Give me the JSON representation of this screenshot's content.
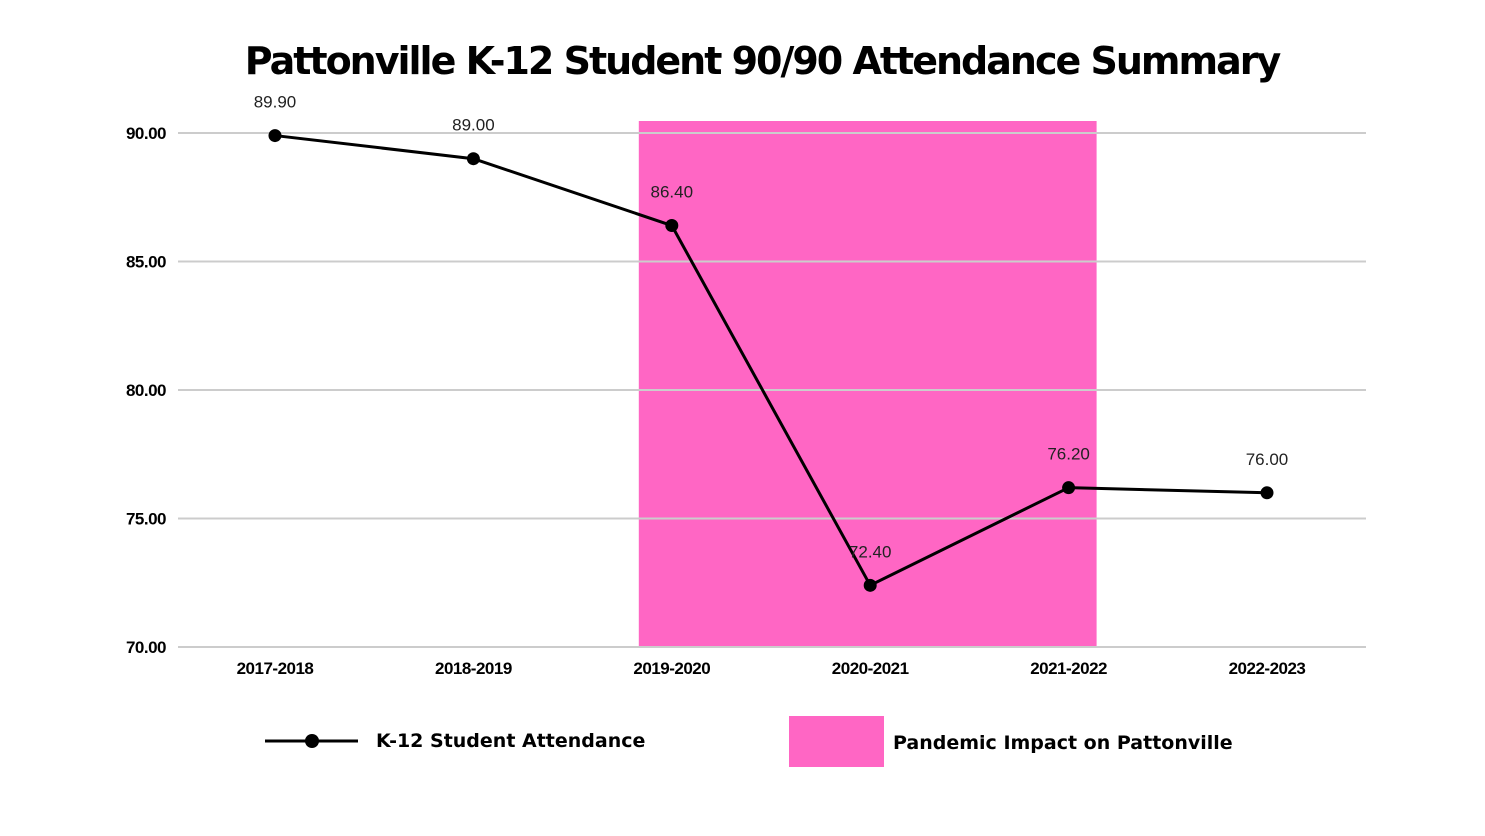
{
  "chart_data": {
    "type": "line",
    "title": "Pattonville K-12 Student 90/90 Attendance Summary",
    "categories": [
      "2017-2018",
      "2018-2019",
      "2019-2020",
      "2020-2021",
      "2021-2022",
      "2022-2023"
    ],
    "series": [
      {
        "name": "K-12 Student Attendance",
        "values": [
          89.9,
          89.0,
          86.4,
          72.4,
          76.2,
          76.0
        ],
        "labels": [
          "89.90",
          "89.00",
          "86.40",
          "72.40",
          "76.20",
          "76.00"
        ],
        "color": "#000000"
      }
    ],
    "highlight_region": {
      "name": "Pandemic Impact on Pattonville",
      "from_category": "2019-2020",
      "to_category": "2021-2022",
      "color": "#ff66c4"
    },
    "yticks": [
      70,
      75,
      80,
      85,
      90
    ],
    "ytick_labels": [
      "70.00",
      "75.00",
      "80.00",
      "85.00",
      "90.00"
    ],
    "ylim": [
      70,
      90
    ],
    "grid": true,
    "xlabel": "",
    "ylabel": "",
    "legend_position": "bottom"
  }
}
